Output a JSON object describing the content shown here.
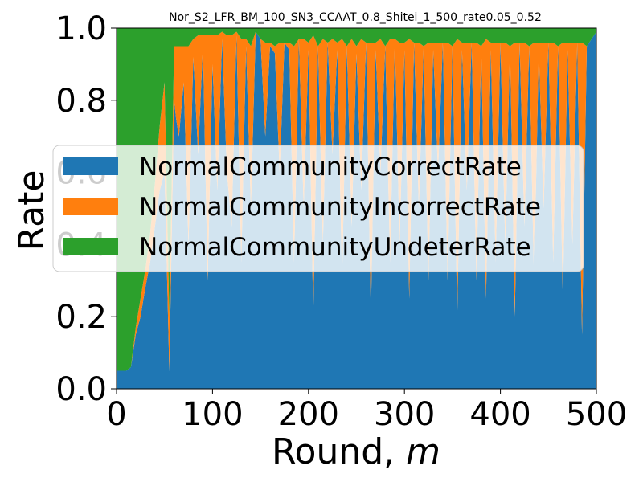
{
  "chart_data": {
    "type": "area",
    "title": "Nor_S2_LFR_BM_100_SN3_CCAAT_0.8_Shitei_1_500_rate0.05_0.52",
    "xlabel": "Round, ",
    "xlabel_italic": "m",
    "ylabel": "Rate",
    "xlim": [
      0,
      500
    ],
    "ylim": [
      0,
      1.0
    ],
    "xticks": [
      "0",
      "100",
      "200",
      "300",
      "400",
      "500"
    ],
    "yticks": [
      "0.0",
      "0.2",
      "0.4",
      "0.6",
      "0.8",
      "1.0"
    ],
    "stacked": true,
    "grid": false,
    "legend_position": "center-left",
    "series": [
      {
        "name": "NormalCommunityCorrectRate",
        "color": "#1f77b4"
      },
      {
        "name": "NormalCommunityIncorrectRate",
        "color": "#ff7f0e"
      },
      {
        "name": "NormalCommunityUndeterRate",
        "color": "#2ca02c"
      }
    ],
    "x": [
      0,
      5,
      10,
      15,
      20,
      25,
      30,
      35,
      40,
      45,
      50,
      55,
      60,
      62,
      65,
      70,
      75,
      80,
      85,
      90,
      95,
      100,
      105,
      110,
      115,
      120,
      125,
      130,
      135,
      140,
      145,
      150,
      155,
      160,
      165,
      170,
      175,
      180,
      185,
      190,
      195,
      200,
      205,
      210,
      215,
      220,
      225,
      230,
      235,
      240,
      245,
      250,
      255,
      260,
      265,
      270,
      275,
      280,
      285,
      290,
      295,
      300,
      305,
      310,
      315,
      320,
      325,
      330,
      335,
      340,
      345,
      350,
      355,
      360,
      365,
      370,
      375,
      380,
      385,
      390,
      395,
      400,
      405,
      410,
      415,
      420,
      425,
      430,
      435,
      440,
      445,
      450,
      455,
      460,
      465,
      470,
      475,
      480,
      485,
      490,
      495,
      500
    ],
    "correct": [
      0.05,
      0.05,
      0.05,
      0.06,
      0.15,
      0.2,
      0.28,
      0.35,
      0.45,
      0.55,
      0.6,
      0.05,
      0.8,
      0.75,
      0.7,
      0.85,
      0.4,
      0.92,
      0.65,
      0.95,
      0.3,
      0.9,
      0.55,
      0.97,
      0.6,
      0.45,
      0.98,
      0.35,
      0.95,
      0.5,
      0.99,
      0.97,
      0.7,
      0.95,
      0.93,
      0.6,
      0.96,
      0.94,
      0.35,
      0.97,
      0.5,
      0.94,
      0.2,
      0.95,
      0.4,
      0.96,
      0.65,
      0.94,
      0.3,
      0.95,
      0.45,
      0.93,
      0.55,
      0.96,
      0.2,
      0.94,
      0.6,
      0.95,
      0.35,
      0.97,
      0.4,
      0.94,
      0.25,
      0.96,
      0.5,
      0.95,
      0.3,
      0.94,
      0.6,
      0.96,
      0.3,
      0.95,
      0.2,
      0.94,
      0.55,
      0.96,
      0.3,
      0.95,
      0.25,
      0.94,
      0.35,
      0.96,
      0.4,
      0.95,
      0.2,
      0.96,
      0.45,
      0.95,
      0.3,
      0.94,
      0.5,
      0.96,
      0.35,
      0.95,
      0.25,
      0.94,
      0.4,
      0.96,
      0.15,
      0.95,
      0.97,
      0.99
    ],
    "incorrect": [
      0.0,
      0.0,
      0.0,
      0.0,
      0.02,
      0.05,
      0.05,
      0.08,
      0.12,
      0.18,
      0.25,
      0.15,
      0.15,
      0.2,
      0.25,
      0.1,
      0.55,
      0.05,
      0.33,
      0.03,
      0.68,
      0.08,
      0.43,
      0.02,
      0.38,
      0.53,
      0.01,
      0.62,
      0.02,
      0.45,
      0.0,
      0.0,
      0.26,
      0.01,
      0.02,
      0.36,
      0.0,
      0.02,
      0.6,
      0.0,
      0.47,
      0.02,
      0.78,
      0.0,
      0.57,
      0.0,
      0.32,
      0.02,
      0.67,
      0.0,
      0.52,
      0.02,
      0.42,
      0.0,
      0.76,
      0.02,
      0.37,
      0.0,
      0.62,
      0.0,
      0.56,
      0.02,
      0.72,
      0.0,
      0.46,
      0.0,
      0.66,
      0.02,
      0.36,
      0.0,
      0.66,
      0.0,
      0.77,
      0.02,
      0.41,
      0.0,
      0.66,
      0.0,
      0.72,
      0.02,
      0.61,
      0.0,
      0.56,
      0.0,
      0.76,
      0.0,
      0.51,
      0.0,
      0.66,
      0.02,
      0.46,
      0.0,
      0.61,
      0.0,
      0.71,
      0.02,
      0.56,
      0.0,
      0.81,
      0.0,
      0.0,
      0.0
    ]
  }
}
